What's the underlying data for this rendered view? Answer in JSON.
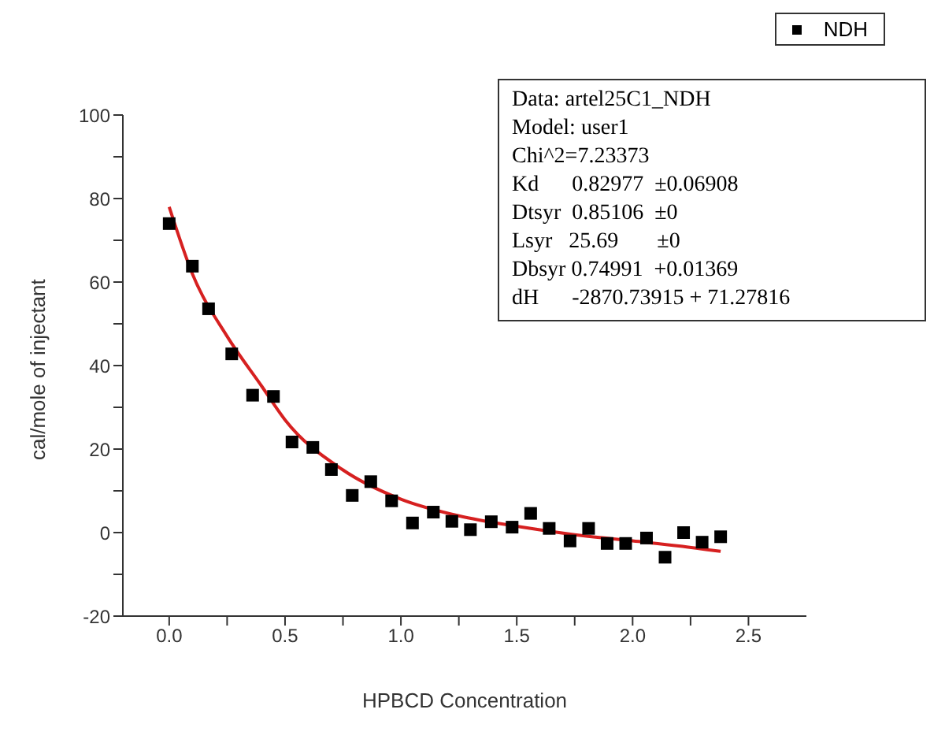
{
  "chart_data": {
    "type": "scatter",
    "xlabel": "HPBCD Concentration",
    "ylabel": "cal/mole of injectant",
    "xlim": [
      -0.2,
      2.75
    ],
    "xticks": [
      {
        "value": 0,
        "label": "0.0"
      },
      {
        "value": 0.25,
        "label": null
      },
      {
        "value": 0.5,
        "label": "0.5"
      },
      {
        "value": 0.75,
        "label": null
      },
      {
        "value": 1,
        "label": "1.0"
      },
      {
        "value": 1.25,
        "label": null
      },
      {
        "value": 1.5,
        "label": "1.5"
      },
      {
        "value": 1.75,
        "label": null
      },
      {
        "value": 2,
        "label": "2.0"
      },
      {
        "value": 2.25,
        "label": null
      },
      {
        "value": 2.5,
        "label": "2.5"
      }
    ],
    "ylim": [
      -20,
      100
    ],
    "yticks": [
      -20,
      {
        "value": -10,
        "label": null
      },
      0,
      {
        "value": 10,
        "label": null
      },
      20,
      {
        "value": 30,
        "label": null
      },
      40,
      {
        "value": 50,
        "label": null
      },
      60,
      {
        "value": 70,
        "label": null
      },
      80,
      {
        "value": 90,
        "label": null
      },
      100
    ],
    "marker": "square",
    "legend": "top right",
    "grid": false,
    "series": [
      {
        "name": "NDH",
        "color": "#000000",
        "x": [
          0.0,
          0.1,
          0.17,
          0.27,
          0.36,
          0.45,
          0.53,
          0.62,
          0.7,
          0.79,
          0.87,
          0.96,
          1.05,
          1.14,
          1.22,
          1.3,
          1.39,
          1.48,
          1.56,
          1.64,
          1.73,
          1.81,
          1.89,
          1.97,
          2.06,
          2.14,
          2.22,
          2.3,
          2.38
        ],
        "values": [
          74,
          63.8,
          53.6,
          42.8,
          32.9,
          32.6,
          21.7,
          20.4,
          15.1,
          8.9,
          12.2,
          7.6,
          2.3,
          4.9,
          2.7,
          0.7,
          2.6,
          1.3,
          4.6,
          1.0,
          -2.0,
          1.0,
          -2.6,
          -2.6,
          -1.3,
          -5.9,
          0,
          -2.3,
          -1.0
        ]
      },
      {
        "type": "line",
        "color": "#d62020",
        "marker": "none",
        "x": [
          0,
          0.1,
          0.25,
          0.4,
          0.5,
          0.75,
          1,
          1.25,
          1.5,
          1.75,
          2,
          2.2,
          2.38
        ],
        "values": [
          78,
          62,
          47,
          35,
          27,
          15,
          8,
          4,
          1.5,
          -0.5,
          -2,
          -3.2,
          -4.5
        ]
      }
    ],
    "annotations": [
      "Data: artel25C1_NDH",
      "Model: user1",
      "Chi^2=7.23373",
      "Kd      0.82977  ±0.06908",
      "Dtsyr  0.85106  ±0",
      "Lsyr   25.69       ±0",
      "Dbsyr 0.74991  +0.01369",
      "dH      -2870.73915 + 71.27816"
    ]
  }
}
